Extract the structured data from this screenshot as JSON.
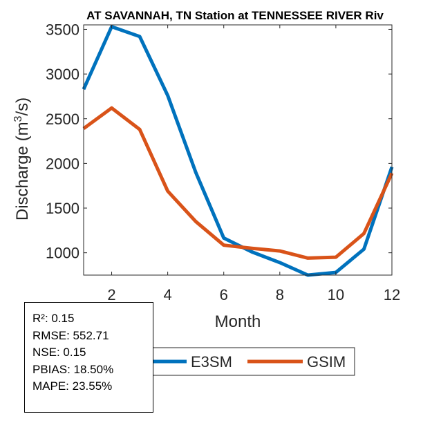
{
  "chart_data": {
    "type": "line",
    "title": "AT SAVANNAH, TN  Station at  TENNESSEE RIVER  Riv",
    "xlabel": "Month",
    "ylabel_prefix": "Discharge (m",
    "ylabel_sup": "3",
    "ylabel_suffix": "/s)",
    "xlim": [
      1,
      12
    ],
    "ylim": [
      750,
      3550
    ],
    "x": [
      1,
      2,
      3,
      4,
      5,
      6,
      7,
      8,
      9,
      10,
      11,
      12
    ],
    "xticks": [
      2,
      4,
      6,
      8,
      10,
      12
    ],
    "yticks": [
      1000,
      1500,
      2000,
      2500,
      3000,
      3500
    ],
    "series": [
      {
        "name": "E3SM",
        "color": "#0072BD",
        "values": [
          2830,
          3530,
          3420,
          2760,
          1900,
          1165,
          1010,
          890,
          750,
          780,
          1040,
          1960
        ]
      },
      {
        "name": "GSIM",
        "color": "#D95319",
        "values": [
          2390,
          2620,
          2380,
          1690,
          1350,
          1085,
          1050,
          1020,
          940,
          950,
          1215,
          1890
        ]
      }
    ]
  },
  "stats": {
    "r2": "R²: 0.15",
    "rmse": "RMSE: 552.71",
    "nse": "NSE: 0.15",
    "pbias": "PBIAS: 18.50%",
    "mape": "MAPE: 23.55%"
  }
}
